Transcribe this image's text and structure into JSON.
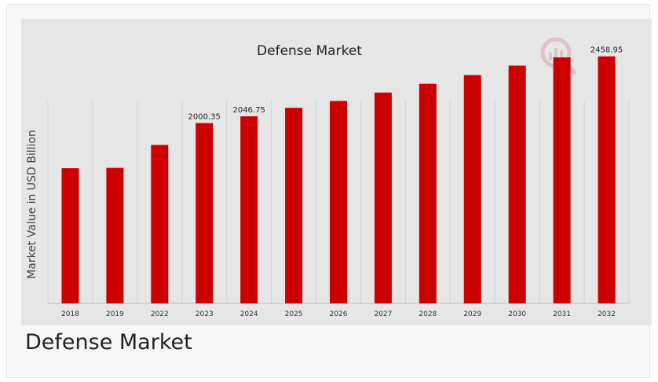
{
  "chart_data": {
    "type": "bar",
    "title": "Defense Market",
    "ylabel": "Market Value in USD Billion",
    "xlabel": "",
    "categories": [
      "2018",
      "2019",
      "2022",
      "2023",
      "2024",
      "2025",
      "2026",
      "2027",
      "2028",
      "2029",
      "2030",
      "2031",
      "2032"
    ],
    "values": [
      1690,
      1692,
      1850,
      2000.35,
      2046.75,
      2105,
      2152,
      2210,
      2270,
      2330,
      2395,
      2452,
      2458.95
    ],
    "data_labels": {
      "3": "2000.35",
      "4": "2046.75",
      "12": "2458.95"
    },
    "ylim": [
      0,
      2600
    ],
    "grid": "vertical",
    "bar_color": "#cc0000"
  },
  "caption": "Defense Market",
  "logo": {
    "icon": "magnifier-bar-chart-logo",
    "color": "#d9a8ac"
  }
}
